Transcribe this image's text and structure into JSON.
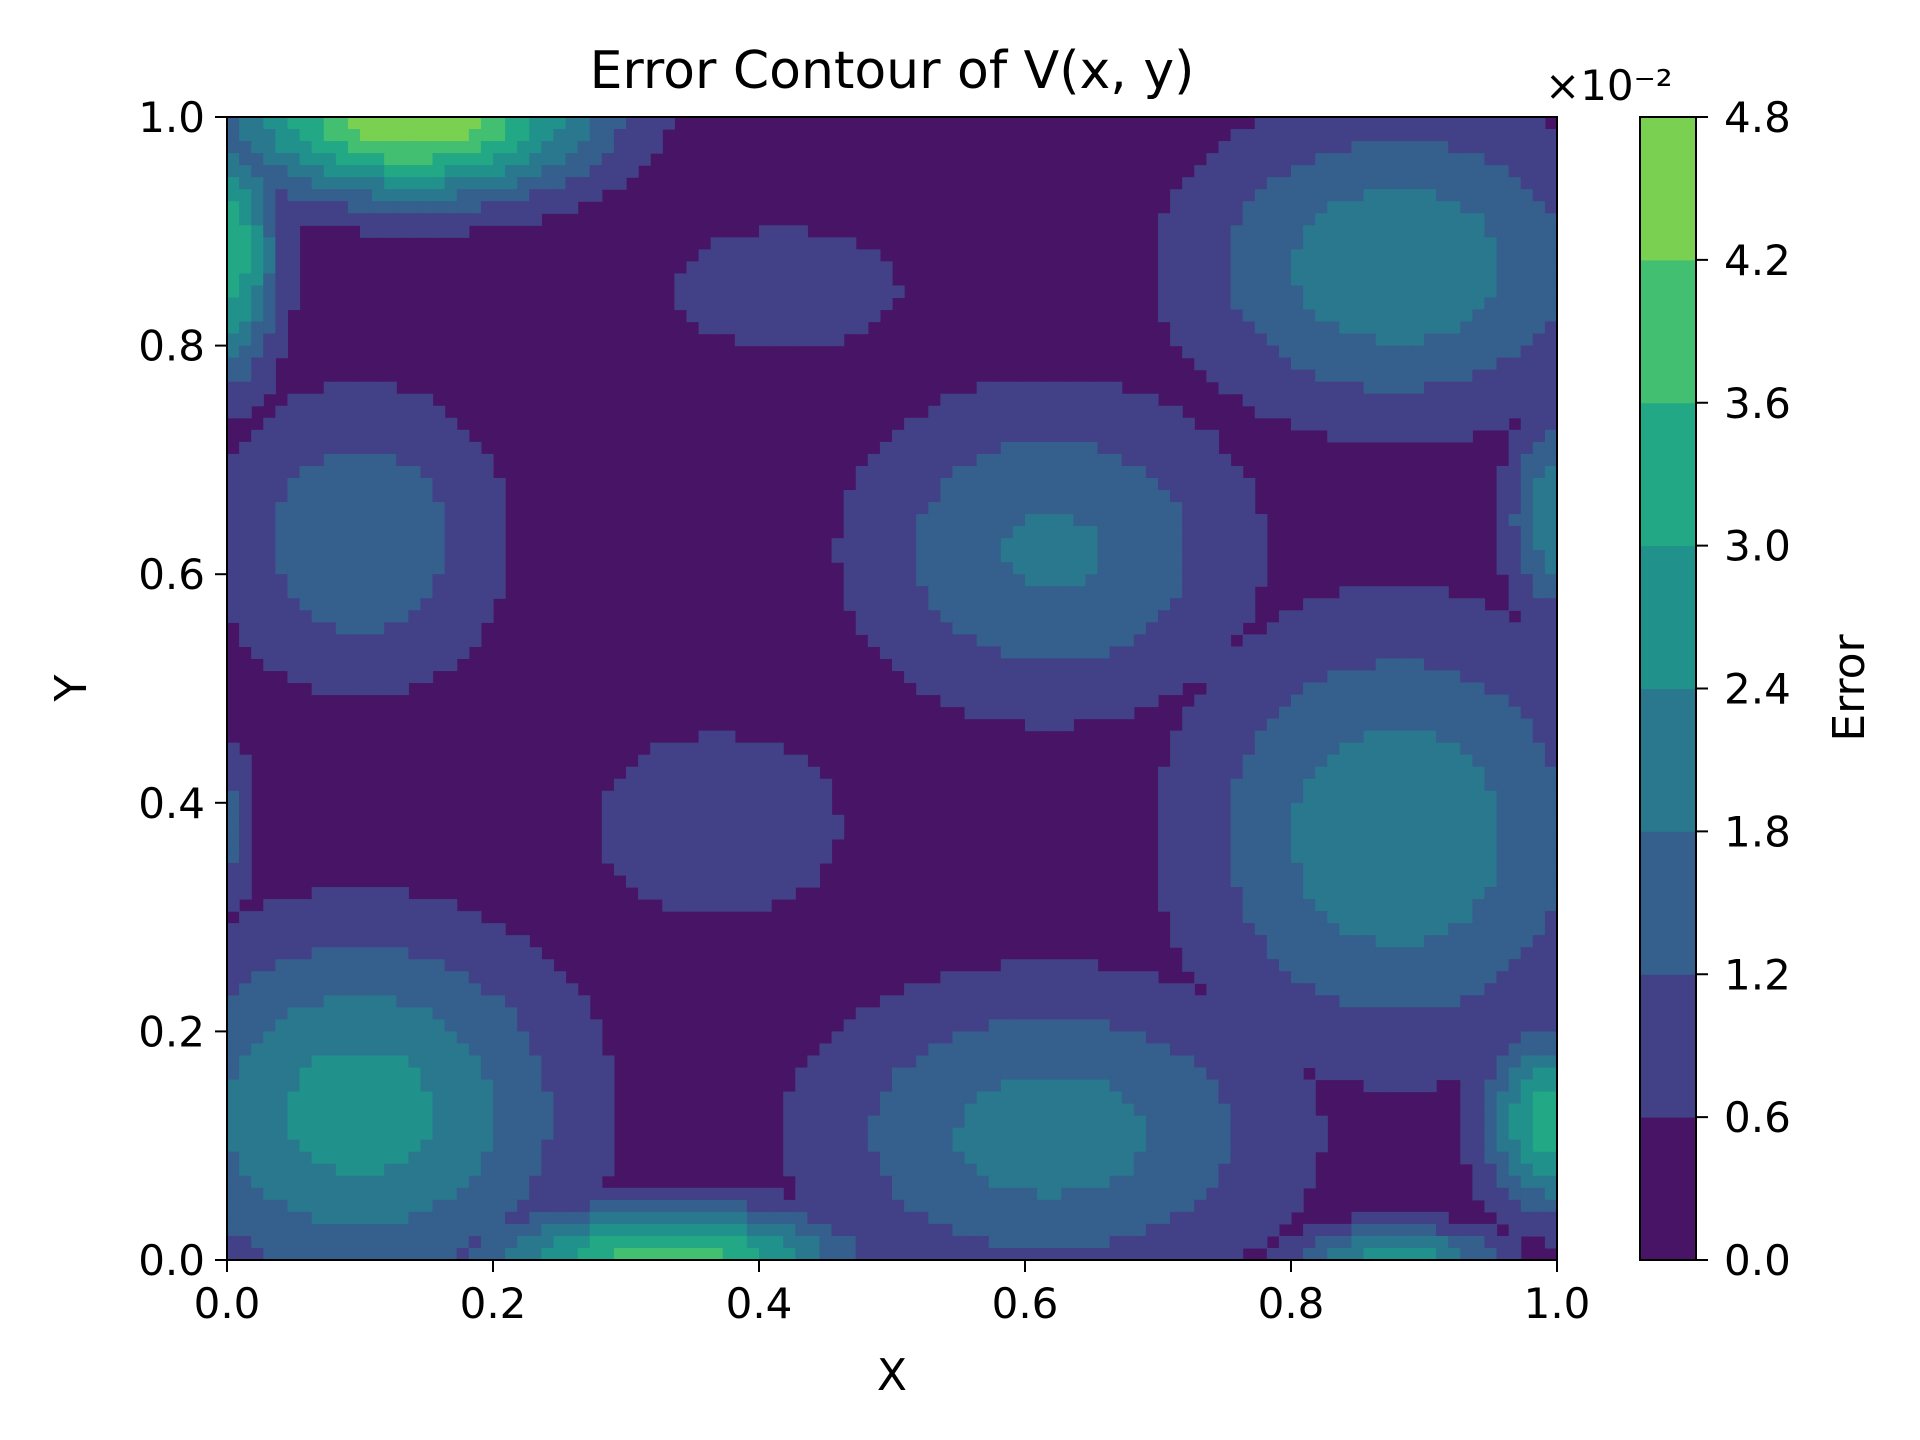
{
  "chart_data": {
    "type": "contour",
    "title": "Error Contour of V(x, y)",
    "xlabel": "X",
    "ylabel": "Y",
    "xlim": [
      0.0,
      1.0
    ],
    "ylim": [
      0.0,
      1.0
    ],
    "x_ticks": [
      "0.0",
      "0.2",
      "0.4",
      "0.6",
      "0.8",
      "1.0"
    ],
    "y_ticks": [
      "0.0",
      "0.2",
      "0.4",
      "0.6",
      "0.8",
      "1.0"
    ],
    "colorbar": {
      "label": "Error",
      "scale_label": "×10⁻²",
      "levels": [
        0.0,
        0.6,
        1.2,
        1.8,
        2.4,
        3.0,
        3.6,
        4.2,
        4.8
      ],
      "tick_labels": [
        "0.0",
        "0.6",
        "1.2",
        "1.8",
        "2.4",
        "3.0",
        "3.6",
        "4.2",
        "4.8"
      ],
      "colors": [
        "#471466",
        "#424086",
        "#355f8d",
        "#29788e",
        "#21918c",
        "#22a884",
        "#43bf71",
        "#7ad151",
        "#d2e21b"
      ]
    },
    "grid": false,
    "blobs": [
      {
        "cx": 0.1,
        "cy": 0.13,
        "rx": 0.2,
        "ry": 0.2,
        "peak": 2.7
      },
      {
        "cx": 0.62,
        "cy": 0.11,
        "rx": 0.23,
        "ry": 0.17,
        "peak": 2.1
      },
      {
        "cx": 0.88,
        "cy": 0.37,
        "rx": 0.2,
        "ry": 0.24,
        "peak": 2.3
      },
      {
        "cx": 0.88,
        "cy": 0.87,
        "rx": 0.2,
        "ry": 0.17,
        "peak": 2.3
      },
      {
        "cx": 0.62,
        "cy": 0.62,
        "rx": 0.19,
        "ry": 0.18,
        "peak": 1.9
      },
      {
        "cx": 0.1,
        "cy": 0.63,
        "rx": 0.14,
        "ry": 0.17,
        "peak": 1.7
      },
      {
        "cx": 0.37,
        "cy": 0.38,
        "rx": 0.16,
        "ry": 0.14,
        "peak": 1.0
      },
      {
        "cx": 0.42,
        "cy": 0.85,
        "rx": 0.15,
        "ry": 0.09,
        "peak": 1.0
      },
      {
        "cx": 0.14,
        "cy": 1.0,
        "rx": 0.17,
        "ry": 0.09,
        "peak": 4.8
      },
      {
        "cx": 0.33,
        "cy": 0.0,
        "rx": 0.17,
        "ry": 0.06,
        "peak": 4.0
      },
      {
        "cx": 0.88,
        "cy": 0.0,
        "rx": 0.1,
        "ry": 0.04,
        "peak": 2.8
      },
      {
        "cx": 0.0,
        "cy": 0.88,
        "rx": 0.05,
        "ry": 0.14,
        "peak": 3.5
      },
      {
        "cx": 0.0,
        "cy": 0.38,
        "rx": 0.03,
        "ry": 0.1,
        "peak": 1.5
      },
      {
        "cx": 1.0,
        "cy": 0.12,
        "rx": 0.07,
        "ry": 0.1,
        "peak": 3.5
      },
      {
        "cx": 1.0,
        "cy": 0.65,
        "rx": 0.05,
        "ry": 0.12,
        "peak": 2.3
      }
    ]
  }
}
